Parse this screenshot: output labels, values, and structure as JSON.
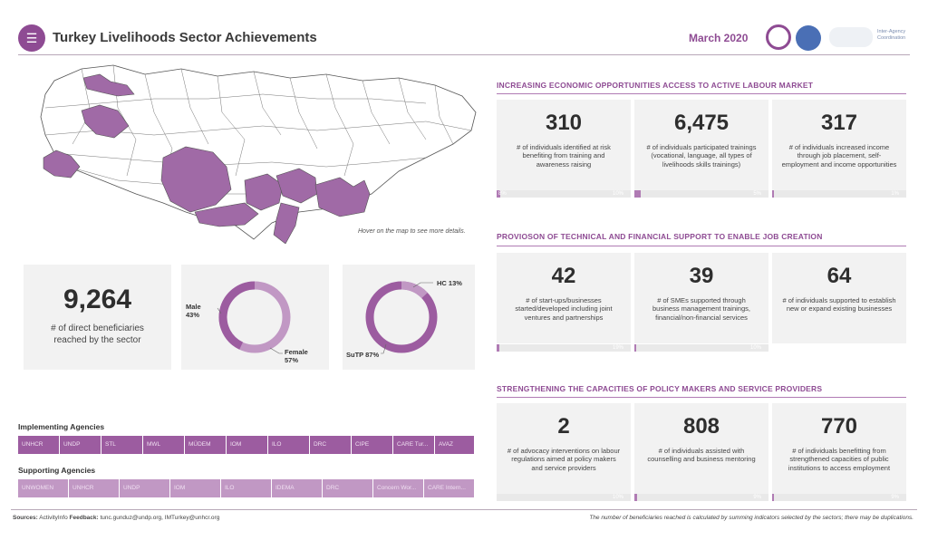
{
  "header": {
    "title": "Turkey Livelihoods Sector Achievements",
    "date": "March 2020",
    "logo_text": "Inter-Agency Coordination"
  },
  "map": {
    "hint": "Hover on the map to see more details."
  },
  "sections": [
    {
      "title": "INCREASING ECONOMIC OPPORTUNITIES ACCESS TO ACTIVE LABOUR MARKET",
      "kpis": [
        {
          "value": "310",
          "label": "# of individuals identified at risk benefiting from training and awareness raising",
          "progress_left": "8%",
          "progress_right": "10%",
          "progress": 0.03
        },
        {
          "value": "6,475",
          "label": "# of individuals participated trainings (vocational, language, all types of livelihoods skills trainings)",
          "progress_right": "5%",
          "progress": 0.05
        },
        {
          "value": "317",
          "label": "# of individuals increased income through job placement, self-employment and income opportunities",
          "progress_right": "1%",
          "progress": 0.01
        }
      ]
    },
    {
      "title": "PROVIOSON OF TECHNICAL AND FINANCIAL SUPPORT TO ENABLE JOB CREATION",
      "kpis": [
        {
          "value": "42",
          "label": "# of start-ups/businesses started/developed including joint ventures and partnerships",
          "progress_right": "19%",
          "progress": 0.02
        },
        {
          "value": "39",
          "label": "# of SMEs supported through business management trainings, financial/non-financial services",
          "progress_right": "10%",
          "progress": 0.01
        },
        {
          "value": "64",
          "label": "# of individuals supported to establish new or expand existing businesses",
          "progress_right": "",
          "progress": 0
        }
      ]
    },
    {
      "title": "STRENGTHENING THE CAPACITIES OF POLICY MAKERS AND SERVICE PROVIDERS",
      "kpis": [
        {
          "value": "2",
          "label": "# of advocacy interventions on labour regulations aimed at policy makers and service providers",
          "progress_right": "10%",
          "progress": 0
        },
        {
          "value": "808",
          "label": "# of individuals assisted with counselling and business mentoring",
          "progress_right": "9%",
          "progress": 0.01
        },
        {
          "value": "770",
          "label": "# of individuals benefitting from strengthened capacities of public institutions to access employment",
          "progress_right": "9%",
          "progress": 0.01
        }
      ]
    }
  ],
  "beneficiaries": {
    "value": "9,264",
    "label": "# of direct beneficiaries reached by the sector"
  },
  "gender": {
    "male_label": "Male",
    "male_pct": "43%",
    "female_label": "Female",
    "female_pct": "57%",
    "male_value": 43,
    "female_value": 57
  },
  "population": {
    "hc_label": "HC 13%",
    "sutp_label": "SuTP 87%",
    "hc_value": 13,
    "sutp_value": 87
  },
  "implementing": {
    "title": "Implementing Agencies",
    "items": [
      "UNHCR",
      "UNDP",
      "STL",
      "MWL",
      "MÜDEM",
      "IOM",
      "ILO",
      "DRC",
      "CIPE",
      "CARE Tur...",
      "AVAZ"
    ]
  },
  "supporting": {
    "title": "Supporting Agencies",
    "items": [
      "UNWOMEN",
      "UNHCR",
      "UNDP",
      "IOM",
      "ILO",
      "IDEMA",
      "DRC",
      "Concern Wor...",
      "CARE Intern..."
    ]
  },
  "footer": {
    "sources_label": "Sources:",
    "sources_value": "ActivityInfo",
    "feedback_label": "Feedback:",
    "feedback_value": "tunc.gunduz@undp.org, IMTurkey@unhcr.org",
    "note": "The number of beneficiaries reached is calculated by summing indicators selected by the sectors; there may be duplications."
  },
  "colors": {
    "primary": "#8e4b93",
    "light": "#c198c4",
    "panel": "#f2f2f2"
  }
}
